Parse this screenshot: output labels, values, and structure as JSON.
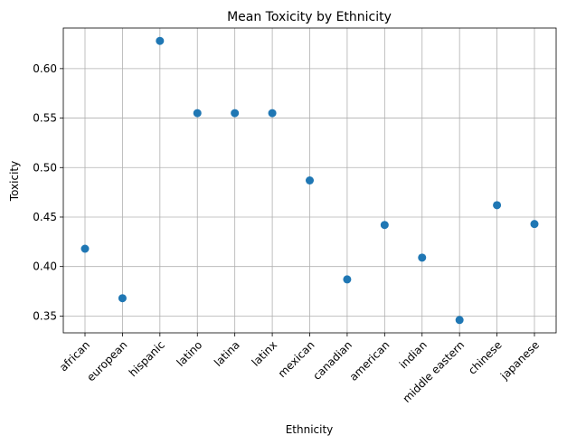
{
  "chart_data": {
    "type": "scatter",
    "title": "Mean Toxicity by Ethnicity",
    "xlabel": "Ethnicity",
    "ylabel": "Toxicity",
    "categories": [
      "african",
      "european",
      "hispanic",
      "latino",
      "latina",
      "latinx",
      "mexican",
      "canadian",
      "american",
      "indian",
      "middle eastern",
      "chinese",
      "japanese"
    ],
    "values": [
      0.418,
      0.368,
      0.628,
      0.555,
      0.555,
      0.555,
      0.487,
      0.387,
      0.442,
      0.409,
      0.346,
      0.462,
      0.443
    ],
    "ylim": [
      0.333,
      0.641
    ],
    "yticks": [
      "0.35",
      "0.40",
      "0.45",
      "0.50",
      "0.55",
      "0.60"
    ],
    "grid": true,
    "marker_color": "#1f77b4"
  }
}
